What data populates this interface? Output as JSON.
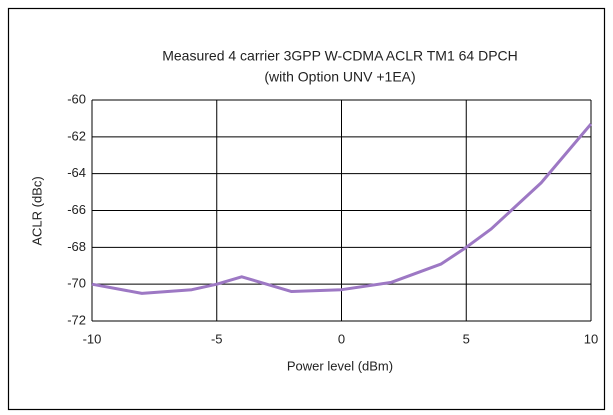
{
  "chart_data": {
    "type": "line",
    "title": "Measured 4 carrier 3GPP W-CDMA ACLR TM1 64 DPCH",
    "subtitle": "(with Option UNV +1EA)",
    "x_label": "Power level (dBm)",
    "y_label": "ACLR (dBc)",
    "x": [
      -10,
      -8,
      -6,
      -5,
      -4,
      -2,
      0,
      2,
      4,
      5,
      6,
      8,
      10
    ],
    "series": [
      {
        "name": "ACLR",
        "color": "#9d78c4",
        "values": [
          -70.0,
          -70.5,
          -70.3,
          -70.0,
          -69.6,
          -70.4,
          -70.3,
          -69.9,
          -68.9,
          -68.0,
          -67.0,
          -64.5,
          -61.3
        ]
      }
    ],
    "xlim": [
      -10,
      10
    ],
    "xticks": [
      -10,
      -5,
      0,
      5,
      10
    ],
    "ylim": [
      -72,
      -60
    ],
    "yticks": [
      -72,
      -70,
      -68,
      -66,
      -64,
      -62,
      -60
    ],
    "grid": true
  }
}
